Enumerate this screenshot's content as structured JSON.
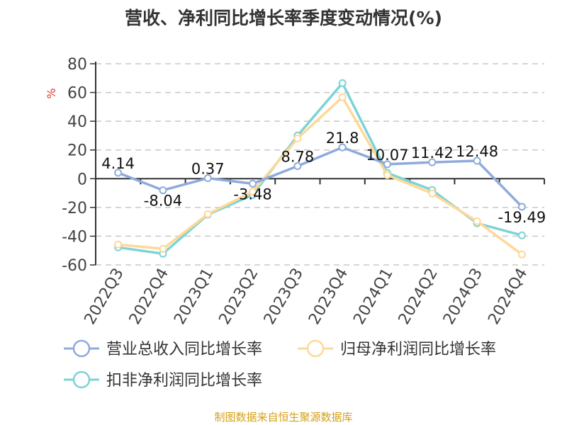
{
  "chart_data": {
    "type": "line",
    "title": "营收、净利同比增长率季度变动情况(%)",
    "ylabel": "%",
    "xlabel": "",
    "ylim": [
      -60,
      80
    ],
    "yticks": [
      80,
      60,
      40,
      20,
      0,
      -20,
      -40,
      -60
    ],
    "grid": true,
    "legend_placement": "bottom",
    "categories": [
      "2022Q3",
      "2022Q4",
      "2023Q1",
      "2023Q2",
      "2023Q3",
      "2023Q4",
      "2024Q1",
      "2024Q2",
      "2024Q3",
      "2024Q4"
    ],
    "series": [
      {
        "name": "营业总收入同比增长率",
        "color": "#8faadc",
        "values": [
          4.14,
          -8.04,
          0.37,
          -3.48,
          8.78,
          21.8,
          10.07,
          11.42,
          12.48,
          -19.49
        ],
        "labels": [
          "4.14",
          "-8.04",
          "0.37",
          "-3.48",
          "8.78",
          "21.8",
          "10.07",
          "11.42",
          "12.48",
          "-19.49"
        ]
      },
      {
        "name": "归母净利润同比增长率",
        "color": "#ffd898",
        "values": [
          -45.8,
          -48.8,
          -24.6,
          -9,
          28,
          56.7,
          2.5,
          -10.3,
          -29.6,
          -52.7
        ]
      },
      {
        "name": "扣非净利润同比增长率",
        "color": "#7dd3d6",
        "values": [
          -47.8,
          -52.2,
          -25,
          -11.3,
          30,
          66.5,
          4,
          -7.9,
          -31,
          -39.4
        ]
      }
    ]
  },
  "source": "制图数据来自恒生聚源数据库"
}
